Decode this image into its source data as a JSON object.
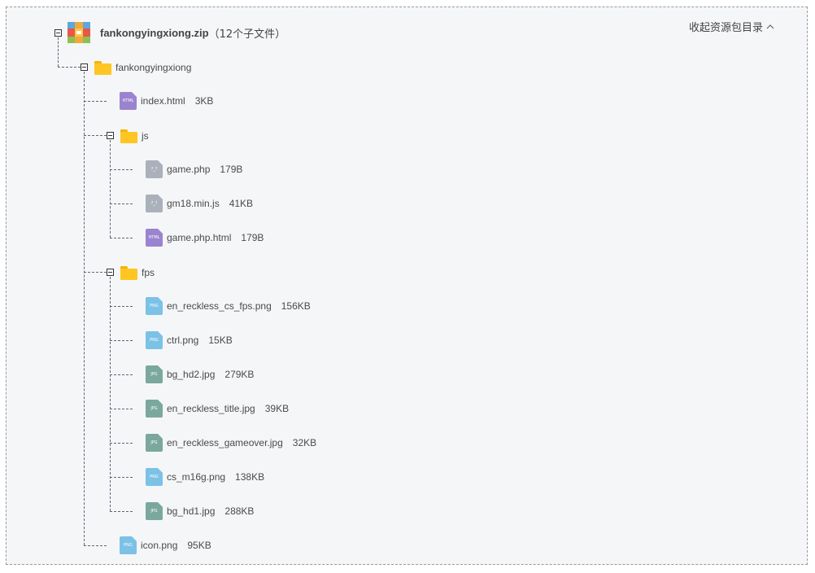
{
  "header": {
    "collapse_label": "收起资源包目录",
    "collapse_icon": "chevron-up-icon"
  },
  "archive": {
    "name": "fankongyingxiong.zip",
    "count_label": "（12个子文件）"
  },
  "tree": {
    "root_folder": "fankongyingxiong",
    "index": {
      "name": "index.html",
      "size": "3KB",
      "icon_label": "HTML"
    },
    "js_folder": "js",
    "js_files": [
      {
        "name": "game.php",
        "size": "179B",
        "icon_label": "?_?"
      },
      {
        "name": "gm18.min.js",
        "size": "41KB",
        "icon_label": "?_?"
      },
      {
        "name": "game.php.html",
        "size": "179B",
        "icon_label": "HTML"
      }
    ],
    "fps_folder": "fps",
    "fps_files": [
      {
        "name": "en_reckless_cs_fps.png",
        "size": "156KB",
        "icon_label": "PNG"
      },
      {
        "name": "ctrl.png",
        "size": "15KB",
        "icon_label": "PNG"
      },
      {
        "name": "bg_hd2.jpg",
        "size": "279KB",
        "icon_label": "JPG"
      },
      {
        "name": "en_reckless_title.jpg",
        "size": "39KB",
        "icon_label": "JPG"
      },
      {
        "name": "en_reckless_gameover.jpg",
        "size": "32KB",
        "icon_label": "JPG"
      },
      {
        "name": "cs_m16g.png",
        "size": "138KB",
        "icon_label": "PNG"
      },
      {
        "name": "bg_hd1.jpg",
        "size": "288KB",
        "icon_label": "JPG"
      }
    ],
    "icon_file": {
      "name": "icon.png",
      "size": "95KB",
      "icon_label": "PNG"
    }
  },
  "colors": {
    "html_icon": "#9b84cf",
    "code_icon": "#aab1bb",
    "png_icon": "#7cc1e6",
    "jpg_icon": "#7aa89c",
    "folder": "#ffc623"
  }
}
